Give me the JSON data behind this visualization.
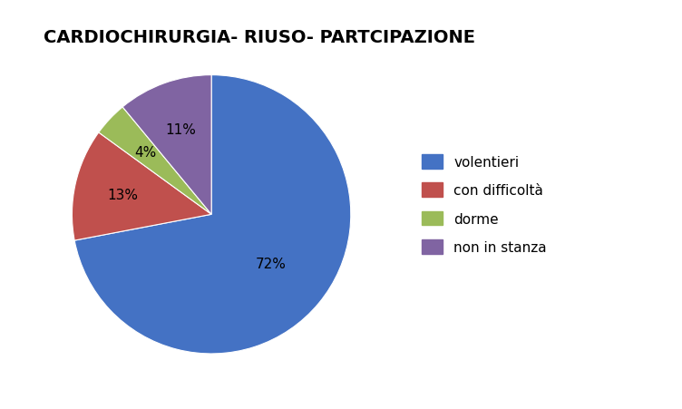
{
  "title": "CARDIOCHIRURGIA- RIUSO- PARTCIPAZIONE",
  "labels": [
    "volentieri",
    "con difficoltà",
    "dorme",
    "non in stanza"
  ],
  "values": [
    72,
    13,
    4,
    11
  ],
  "colors": [
    "#4472C4",
    "#C0504D",
    "#9BBB59",
    "#8064A2"
  ],
  "pct_labels": [
    "72%",
    "13%",
    "4%",
    "11%"
  ],
  "startangle": 90,
  "title_fontsize": 14,
  "label_fontsize": 11,
  "legend_fontsize": 11,
  "background_color": "#FFFFFF"
}
